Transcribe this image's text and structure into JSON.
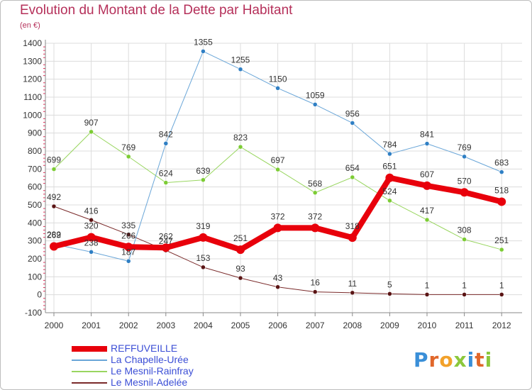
{
  "header": {
    "title": "Evolution du Montant de la Dette par Habitant",
    "unit": "(en €)"
  },
  "logo": {
    "text": "Proxiti",
    "colors": [
      "#3a8fd8",
      "#e0672a",
      "#f2a12a",
      "#8cc83c",
      "#3a8fd8",
      "#e0672a",
      "#8cc83c"
    ]
  },
  "chart_data": {
    "type": "line",
    "title": "Evolution du Montant de la Dette par Habitant",
    "subtitle": "(en €)",
    "xlabel": "",
    "ylabel": "",
    "x": [
      "2000",
      "2001",
      "2002",
      "2003",
      "2004",
      "2005",
      "2006",
      "2007",
      "2008",
      "2009",
      "2010",
      "2011",
      "2012"
    ],
    "ylim": [
      -100,
      1400
    ],
    "yticks": [
      -100,
      0,
      100,
      200,
      300,
      400,
      500,
      600,
      700,
      800,
      900,
      1000,
      1100,
      1200,
      1300,
      1400
    ],
    "grid": "horizontal",
    "legend_position": "bottom-left",
    "series": [
      {
        "name": "REFFUVEILLE",
        "color": "#e8000b",
        "dot": "#e8000b",
        "width": 8,
        "dotRadius": 6,
        "values": [
          269,
          320,
          266,
          262,
          319,
          251,
          372,
          372,
          318,
          651,
          607,
          570,
          518
        ],
        "labels": [
          "269",
          "320",
          "266",
          "262",
          "319",
          "251",
          "372",
          "372",
          "318",
          "651",
          "607",
          "570",
          "518"
        ]
      },
      {
        "name": "La Chapelle-Urée",
        "color": "#6aa6d8",
        "dot": "#2f7fc4",
        "width": 1,
        "dotRadius": 3,
        "values": [
          282,
          238,
          187,
          842,
          1355,
          1255,
          1150,
          1059,
          956,
          784,
          841,
          769,
          683
        ],
        "labels": [
          "282",
          "238",
          "187",
          "842",
          "1355",
          "1255",
          "1150",
          "1059",
          "956",
          "784",
          "841",
          "769",
          "683"
        ]
      },
      {
        "name": "Le Mesnil-Rainfray",
        "color": "#99d660",
        "dot": "#7ccc34",
        "width": 1,
        "dotRadius": 3,
        "values": [
          699,
          907,
          769,
          624,
          639,
          823,
          697,
          568,
          654,
          524,
          417,
          308,
          251
        ],
        "labels": [
          "699",
          "907",
          "769",
          "624",
          "639",
          "823",
          "697",
          "568",
          "654",
          "524",
          "417",
          "308",
          "251"
        ]
      },
      {
        "name": "Le Mesnil-Adelée",
        "color": "#7a2a2a",
        "dot": "#5a1414",
        "width": 1,
        "dotRadius": 3,
        "values": [
          492,
          416,
          335,
          247,
          153,
          93,
          43,
          16,
          11,
          5,
          1,
          1,
          1
        ],
        "labels": [
          "492",
          "416",
          "335",
          "247",
          "153",
          "93",
          "43",
          "16",
          "11",
          "5",
          "1",
          "1",
          "1"
        ]
      }
    ]
  }
}
